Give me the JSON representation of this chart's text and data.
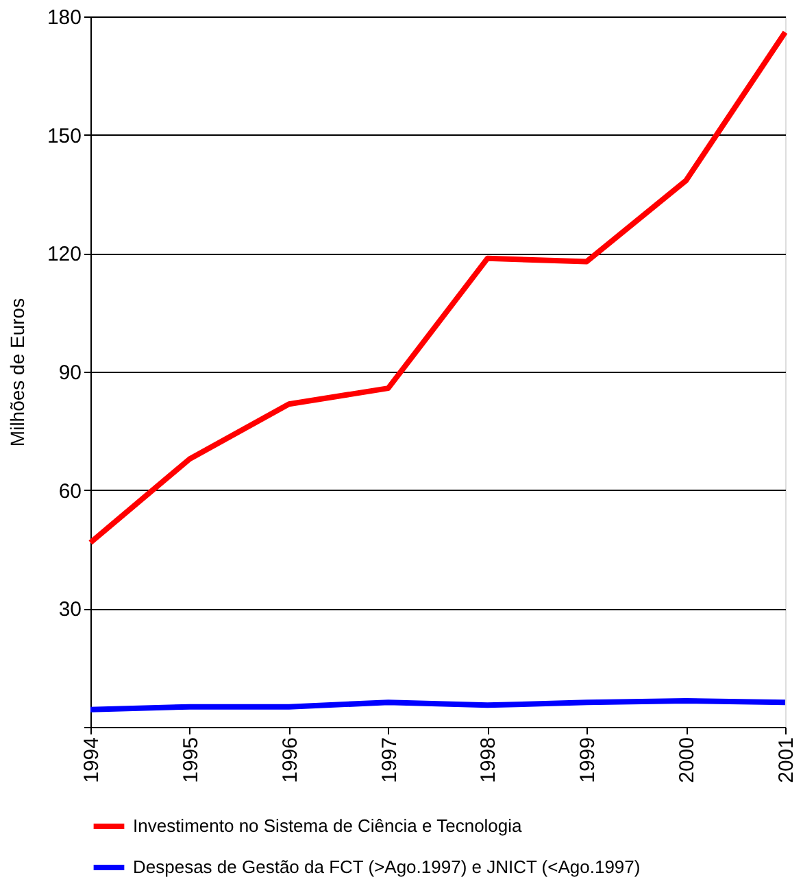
{
  "chart_data": {
    "type": "line",
    "ylabel": "Milhões de Euros",
    "x": [
      1994,
      1995,
      1996,
      1997,
      1998,
      1999,
      2000,
      2001
    ],
    "xlim": [
      1994,
      2001
    ],
    "xticks": [
      1994,
      1995,
      1996,
      1997,
      1998,
      1999,
      2000,
      2001
    ],
    "ylim": [
      0,
      180
    ],
    "yticks": [
      {
        "value": 0,
        "label": null
      },
      30,
      60,
      90,
      120,
      150,
      180
    ],
    "grid": "y",
    "legend": "bottom",
    "line_style": "solid",
    "marker": "none",
    "series": [
      {
        "name": "Investimento no Sistema de Ciência e Tecnologia",
        "color": "#ff0000",
        "values": [
          46.7,
          67.9,
          81.8,
          85.8,
          118.7,
          117.9,
          138.4,
          176
        ]
      },
      {
        "name": "Despesas de Gestão da FCT (>Ago.1997) e JNICT (<Ago.1997)",
        "color": "#0000ff",
        "values": [
          4.4,
          5.1,
          5.1,
          6.2,
          5.5,
          6.2,
          6.6,
          6.2
        ]
      }
    ]
  }
}
